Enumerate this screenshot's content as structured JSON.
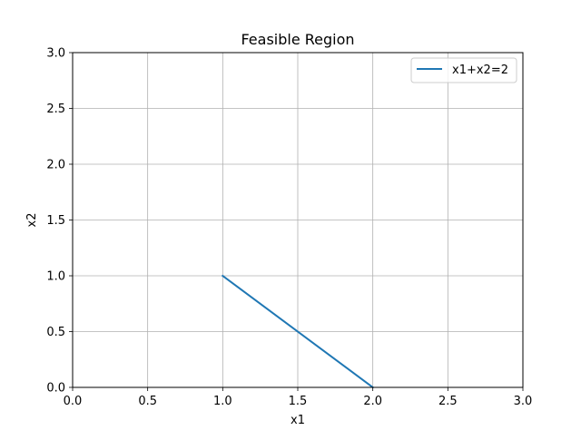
{
  "chart_data": {
    "type": "line",
    "title": "Feasible Region",
    "xlabel": "x1",
    "ylabel": "x2",
    "xlim": [
      0.0,
      3.0
    ],
    "ylim": [
      0.0,
      3.0
    ],
    "xticks": [
      "0.0",
      "0.5",
      "1.0",
      "1.5",
      "2.0",
      "2.5",
      "3.0"
    ],
    "yticks": [
      "0.0",
      "0.5",
      "1.0",
      "1.5",
      "2.0",
      "2.5",
      "3.0"
    ],
    "grid": true,
    "legend_position": "top-right",
    "series": [
      {
        "name": "x1+x2=2",
        "color": "#1f77b4",
        "x": [
          1.0,
          2.0
        ],
        "y": [
          1.0,
          0.0
        ]
      }
    ]
  }
}
